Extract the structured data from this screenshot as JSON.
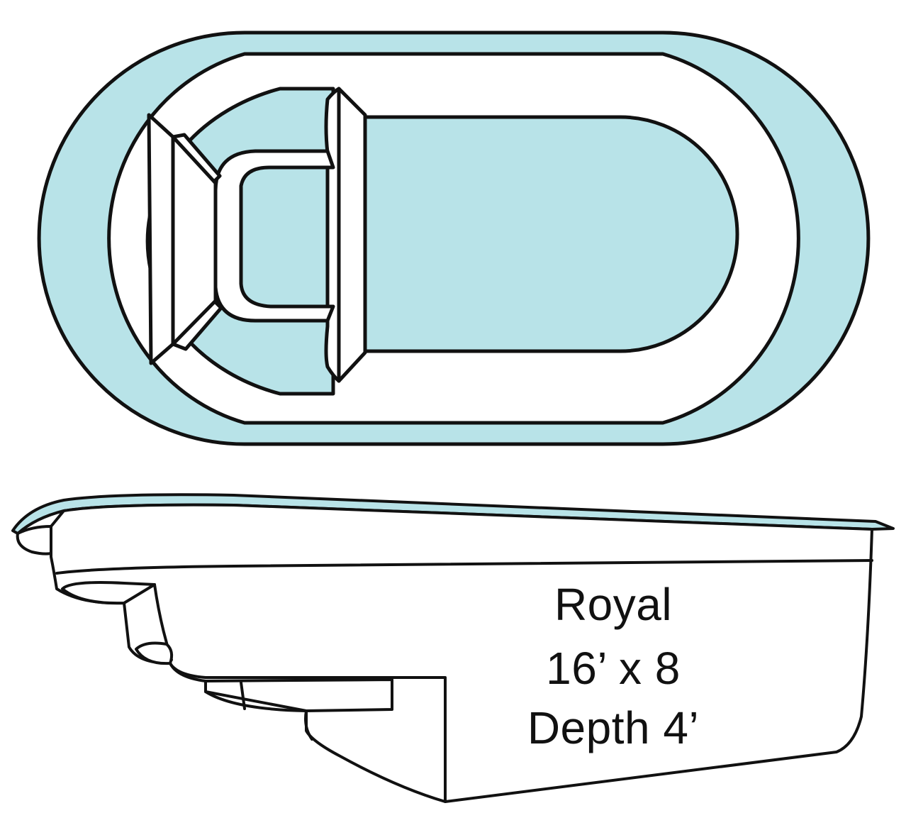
{
  "product": {
    "name": "Royal",
    "size": "16’ x 8",
    "depth": "Depth 4’"
  },
  "views": {
    "top_view": "plan",
    "side_view": "profile"
  },
  "colors": {
    "water": "#b8e3e8",
    "outline": "#111111",
    "deck": "#ffffff",
    "label_text": "#111111"
  }
}
